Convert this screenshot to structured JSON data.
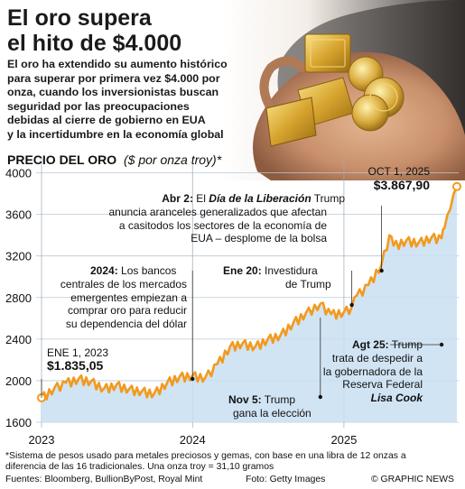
{
  "header": {
    "title_line1": "El oro supera",
    "title_line2": "el hito de $4.000",
    "intro_lines": [
      "El oro ha extendido su aumento histórico",
      "para superar por primera vez $4.000 por",
      "onza, cuando los inversionistas buscan",
      "seguridad por las preocupaciones",
      "debidas al cierre de gobierno en EUA",
      "y la incertidumbre en la economía global"
    ]
  },
  "photo": {
    "description_icon": "hand-holding-gold-bars-and-coins-photo"
  },
  "chart_data": {
    "type": "area",
    "title": "PRECIO DEL ORO",
    "subtitle": "($ por onza troy)*",
    "ylim": [
      1600,
      4100
    ],
    "yticks": [
      1600,
      2000,
      2400,
      2800,
      3200,
      3600,
      4000
    ],
    "ytick_labels": [
      "1600",
      "2000",
      "2400",
      "2800",
      "3200",
      "3600",
      "4000"
    ],
    "xticks": [
      "2023",
      "2024",
      "2025"
    ],
    "grid": true,
    "series": [
      {
        "x": [
          "2023-01-01",
          "2023-02-01",
          "2023-03-01",
          "2023-04-01",
          "2023-05-01",
          "2023-06-01",
          "2023-07-01",
          "2023-08-01",
          "2023-09-01",
          "2023-10-01",
          "2023-11-01",
          "2023-12-01",
          "2024-01-01",
          "2024-02-01",
          "2024-03-01",
          "2024-04-01",
          "2024-05-01",
          "2024-06-01",
          "2024-07-01",
          "2024-08-01",
          "2024-09-01",
          "2024-10-01",
          "2024-11-05",
          "2024-12-01",
          "2025-01-01",
          "2025-01-20",
          "2025-02-01",
          "2025-03-01",
          "2025-04-02",
          "2025-04-21",
          "2025-05-01",
          "2025-06-01",
          "2025-07-01",
          "2025-08-01",
          "2025-08-25",
          "2025-09-01",
          "2025-09-15",
          "2025-10-01"
        ],
        "values": [
          1835.05,
          1930,
          1980,
          2020,
          1995,
          1925,
          1960,
          1920,
          1900,
          1880,
          1985,
          2040,
          2050,
          2030,
          2160,
          2330,
          2360,
          2330,
          2400,
          2440,
          2560,
          2650,
          2740,
          2640,
          2660,
          2710,
          2820,
          2920,
          3120,
          3400,
          3300,
          3350,
          3330,
          3380,
          3370,
          3470,
          3650,
          3867.9
        ]
      }
    ],
    "start_label": {
      "date": "ENE 1, 2023",
      "value": "$1.835,05"
    },
    "end_label": {
      "date": "OCT 1, 2025",
      "value": "$3.867,90"
    },
    "annotations": [
      {
        "id": "abr2",
        "x": "2025-04-02",
        "bold": "Abr 2:",
        "text1": "El",
        "italic_bold": "Día de la Liberación",
        "text2": "Trump",
        "lines": [
          "anuncia aranceles generalizados que afectan",
          "a casitodos los sectores de la economía de",
          "EUA – desplome de la bolsa"
        ]
      },
      {
        "id": "banks",
        "x": "2024-01-01",
        "bold": "2024:",
        "text1": "Los bancos",
        "lines": [
          "centrales de los mercados",
          "emergentes empiezan a",
          "comprar oro para reducir",
          "su dependencia del dólar"
        ]
      },
      {
        "id": "ene20",
        "x": "2025-01-20",
        "bold": "Ene 20:",
        "text1": "Investidura",
        "lines": [
          "de Trump"
        ]
      },
      {
        "id": "nov5",
        "x": "2024-11-05",
        "bold": "Nov 5:",
        "text1": "Trump",
        "lines": [
          "gana la elección"
        ]
      },
      {
        "id": "agt25",
        "x": "2025-08-25",
        "bold": "Agt 25:",
        "text1": "Trump",
        "lines": [
          "trata de despedir a",
          "la gobernadora de la",
          "Reserva Federal"
        ],
        "italic_bold_last": "Lisa Cook"
      }
    ]
  },
  "footer": {
    "note_line1": "*Sistema de pesos usado para metales preciosos y gemas, con base en una libra de 12 onzas a",
    "note_line2": "diferencia de las 16 tradicionales. Una onza troy = 31,10 gramos",
    "sources": "Fuentes: Bloomberg, BullionByPost, Royal Mint",
    "photo_credit": "Foto: Getty Images",
    "brand": "© GRAPHIC NEWS"
  },
  "colors": {
    "line": "#f29a1d",
    "fill": "#c9dff2",
    "grid": "#b8c9d8",
    "axis": "#555555"
  }
}
